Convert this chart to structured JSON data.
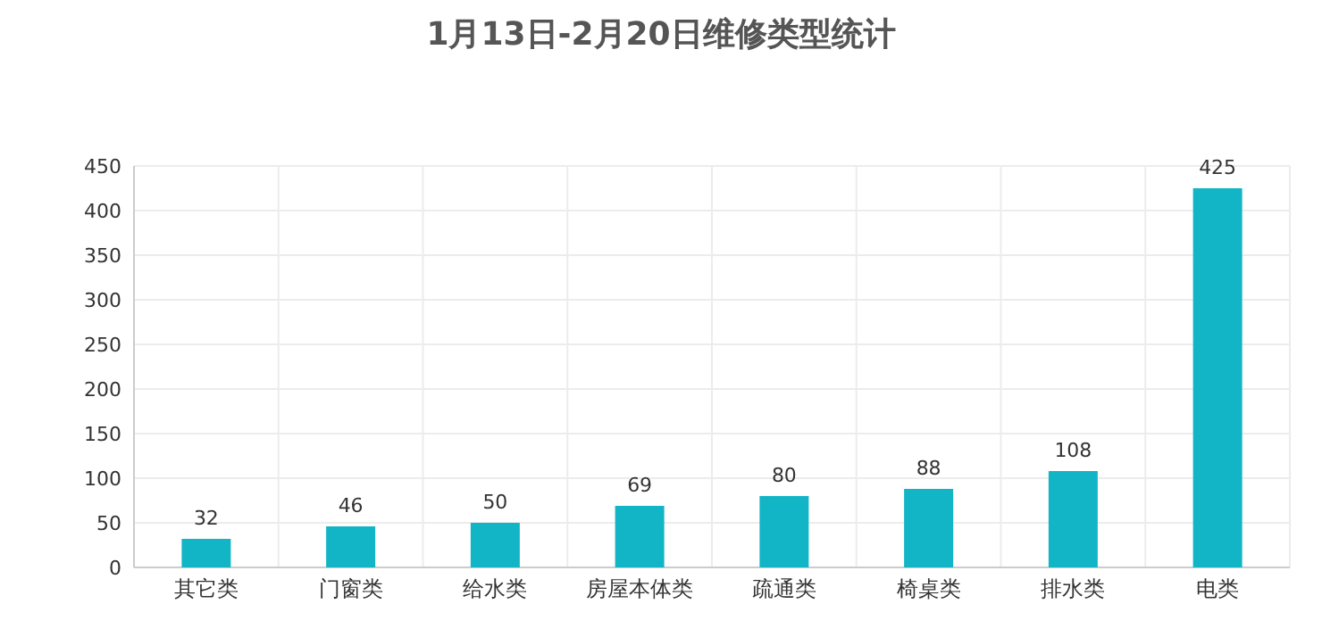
{
  "chart_data": {
    "type": "bar",
    "title": "1月13日-2月20日维修类型统计",
    "categories": [
      "其它类",
      "门窗类",
      "给水类",
      "房屋本体类",
      "疏通类",
      "椅桌类",
      "排水类",
      "电类"
    ],
    "values": [
      32,
      46,
      50,
      69,
      80,
      88,
      108,
      425
    ],
    "color": "#12b5c6",
    "ylim": [
      0,
      450
    ],
    "yticks": [
      0,
      50,
      100,
      150,
      200,
      250,
      300,
      350,
      400,
      450
    ],
    "grid": true,
    "data_labels": true
  }
}
